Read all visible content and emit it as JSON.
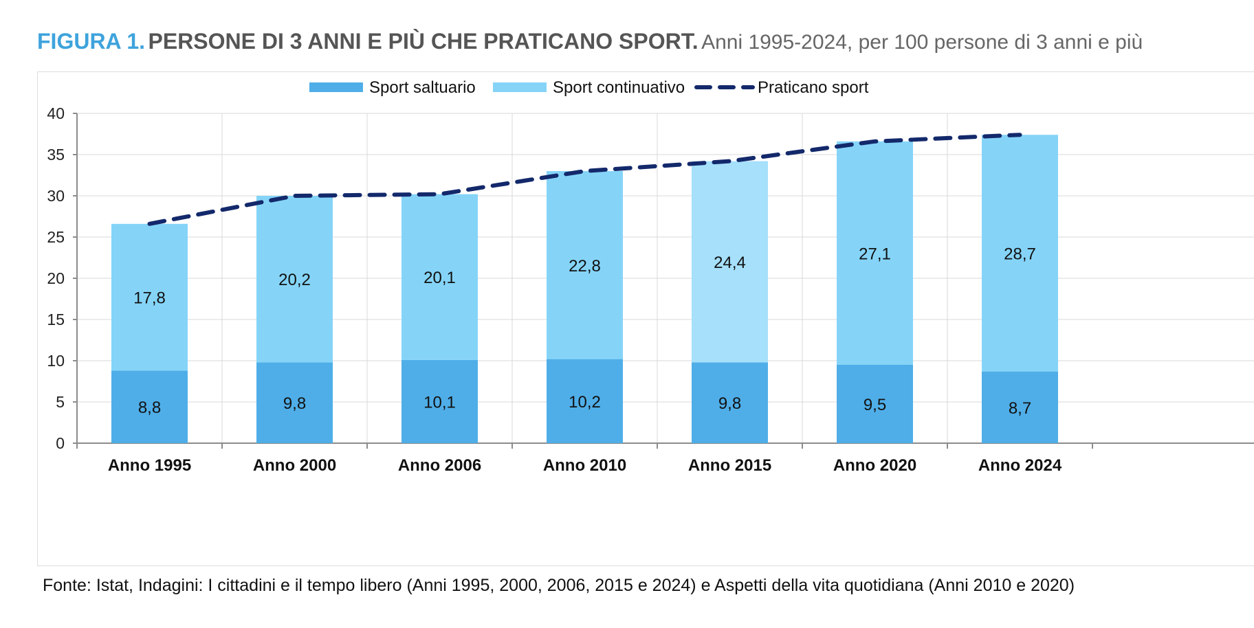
{
  "header": {
    "figure_label": "FIGURA 1.",
    "title": "PERSONE DI 3 ANNI E PIÙ CHE PRATICANO SPORT.",
    "subtitle": "Anni 1995-2024, per 100 persone di 3 anni e più"
  },
  "source": "Fonte: Istat, Indagini: I cittadini e il tempo libero (Anni 1995, 2000, 2006, 2015 e 2024) e Aspetti della vita quotidiana (Anni 2010 e 2020)",
  "colors": {
    "saltuario": "#4faee8",
    "continuativo": "#85d4f8",
    "continuativo_2015": "#a6e0fb",
    "line": "#13296b",
    "grid": "#d9d9d9",
    "axis": "#8c8c8c"
  },
  "chart_data": {
    "type": "bar",
    "stacked": true,
    "categories": [
      "Anno  1995",
      "Anno 2000",
      "Anno 2006",
      "Anno 2010",
      "Anno 2015",
      "Anno 2020",
      "Anno 2024"
    ],
    "series": [
      {
        "name": "Sport saltuario",
        "type": "bar",
        "values": [
          8.8,
          9.8,
          10.1,
          10.2,
          9.8,
          9.5,
          8.7
        ],
        "labels": [
          "8,8",
          "9,8",
          "10,1",
          "10,2",
          "9,8",
          "9,5",
          "8,7"
        ]
      },
      {
        "name": "Sport continuativo",
        "type": "bar",
        "values": [
          17.8,
          20.2,
          20.1,
          22.8,
          24.4,
          27.1,
          28.7
        ],
        "labels": [
          "17,8",
          "20,2",
          "20,1",
          "22,8",
          "24,4",
          "27,1",
          "28,7"
        ]
      },
      {
        "name": "Praticano sport",
        "type": "line",
        "style": "dashed",
        "values": [
          26.6,
          30.0,
          30.2,
          33.0,
          34.2,
          36.6,
          37.4
        ]
      }
    ],
    "ylim": [
      0,
      40
    ],
    "yticks": [
      0,
      5,
      10,
      15,
      20,
      25,
      30,
      35,
      40
    ],
    "grid": true,
    "legend": "top-center",
    "title": "",
    "xlabel": "",
    "ylabel": ""
  }
}
